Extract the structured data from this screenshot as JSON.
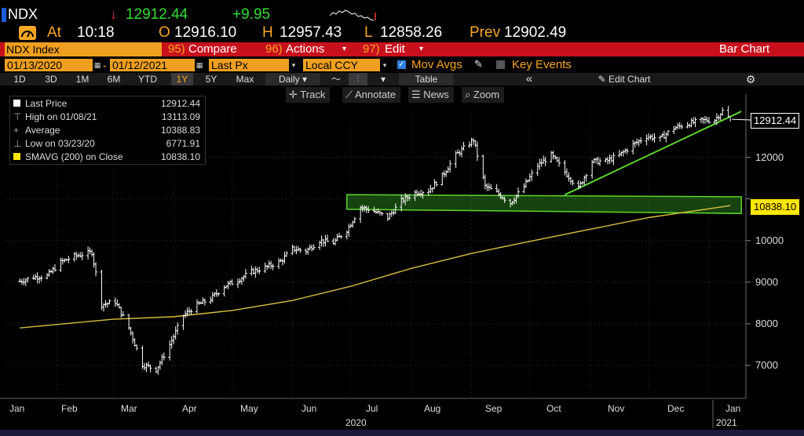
{
  "header": {
    "ticker": "NDX",
    "last_price": "12912.44",
    "arrow": "↓",
    "change": "+9.95",
    "at_label": "At",
    "time": "10:18",
    "open_label": "O",
    "open": "12916.10",
    "high_label": "H",
    "high": "12957.43",
    "low_label": "L",
    "low": "12858.26",
    "prev_label": "Prev",
    "prev": "12902.49"
  },
  "menubar": {
    "security": "NDX Index",
    "compare_num": "95)",
    "compare": "Compare",
    "actions_num": "96)",
    "actions": "Actions",
    "edit_num": "97)",
    "edit": "Edit",
    "title": "Bar Chart"
  },
  "settings": {
    "start_date": "01/13/2020",
    "end_date": "01/12/2021",
    "field": "Last Px",
    "currency": "Local CCY",
    "mov_avgs": "Mov Avgs",
    "key_events": "Key Events"
  },
  "toolbar": {
    "periods": [
      "1D",
      "3D",
      "1M",
      "6M",
      "YTD",
      "1Y",
      "5Y",
      "Max"
    ],
    "selected_period": "1Y",
    "frequency": "Daily",
    "table": "Table",
    "collapse": "«",
    "edit_chart": "Edit Chart"
  },
  "chart_tools": {
    "track": "Track",
    "annotate": "Annotate",
    "news": "News",
    "zoom": "Zoom"
  },
  "legend": [
    {
      "label": "Last Price",
      "value": "12912.44"
    },
    {
      "label": "High on 01/08/21",
      "value": "13113.09"
    },
    {
      "label": "Average",
      "value": "10388.83"
    },
    {
      "label": "Low on 03/23/20",
      "value": "6771.91"
    },
    {
      "label": "SMAVG (200)  on Close",
      "value": "10838.10"
    }
  ],
  "price_labels": {
    "last": "12912.44",
    "smavg": "10838.10"
  },
  "colors": {
    "accent": "#f5a623",
    "menubar": "#c8101d",
    "up": "#33dd33",
    "down": "#e8353c",
    "sma": "#d8c040",
    "trend": "#5dd62c"
  },
  "chart_data": {
    "type": "bar",
    "y_axis": {
      "ticks": [
        7000,
        8000,
        9000,
        10000,
        11000,
        12000
      ],
      "range": [
        6200,
        13400
      ]
    },
    "x_axis": {
      "months": [
        "Jan",
        "Feb",
        "Mar",
        "Apr",
        "May",
        "Jun",
        "Jul",
        "Aug",
        "Sep",
        "Oct",
        "Nov",
        "Dec",
        "Jan"
      ],
      "years": [
        "2020",
        "2021"
      ]
    },
    "close_series": [
      [
        "2020-01-13",
        9020
      ],
      [
        "2020-01-20",
        9120
      ],
      [
        "2020-01-27",
        9150
      ],
      [
        "2020-02-03",
        9480
      ],
      [
        "2020-02-10",
        9620
      ],
      [
        "2020-02-19",
        9720
      ],
      [
        "2020-02-24",
        8460
      ],
      [
        "2020-03-02",
        8530
      ],
      [
        "2020-03-09",
        7900
      ],
      [
        "2020-03-16",
        7020
      ],
      [
        "2020-03-23",
        6900
      ],
      [
        "2020-03-30",
        7500
      ],
      [
        "2020-04-06",
        8200
      ],
      [
        "2020-04-13",
        8450
      ],
      [
        "2020-04-20",
        8600
      ],
      [
        "2020-04-27",
        8900
      ],
      [
        "2020-05-04",
        9050
      ],
      [
        "2020-05-11",
        9250
      ],
      [
        "2020-05-18",
        9350
      ],
      [
        "2020-05-26",
        9500
      ],
      [
        "2020-06-01",
        9800
      ],
      [
        "2020-06-08",
        9750
      ],
      [
        "2020-06-15",
        10000
      ],
      [
        "2020-06-22",
        9950
      ],
      [
        "2020-06-29",
        10250
      ],
      [
        "2020-07-06",
        10800
      ],
      [
        "2020-07-13",
        10700
      ],
      [
        "2020-07-20",
        10550
      ],
      [
        "2020-07-27",
        10950
      ],
      [
        "2020-08-03",
        11150
      ],
      [
        "2020-08-10",
        11200
      ],
      [
        "2020-08-17",
        11550
      ],
      [
        "2020-08-24",
        12050
      ],
      [
        "2020-09-02",
        12420
      ],
      [
        "2020-09-08",
        11300
      ],
      [
        "2020-09-14",
        11150
      ],
      [
        "2020-09-21",
        10900
      ],
      [
        "2020-09-28",
        11300
      ],
      [
        "2020-10-05",
        11800
      ],
      [
        "2020-10-12",
        12050
      ],
      [
        "2020-10-19",
        11650
      ],
      [
        "2020-10-26",
        11250
      ],
      [
        "2020-11-02",
        11900
      ],
      [
        "2020-11-09",
        11900
      ],
      [
        "2020-11-16",
        12050
      ],
      [
        "2020-11-23",
        12300
      ],
      [
        "2020-11-30",
        12500
      ],
      [
        "2020-12-07",
        12450
      ],
      [
        "2020-12-14",
        12700
      ],
      [
        "2020-12-21",
        12800
      ],
      [
        "2020-12-28",
        12880
      ],
      [
        "2021-01-04",
        12900
      ],
      [
        "2021-01-08",
        13113
      ],
      [
        "2021-01-12",
        12912
      ]
    ],
    "sma200": [
      [
        "2020-01-13",
        7900
      ],
      [
        "2020-03-01",
        8110
      ],
      [
        "2020-04-01",
        8170
      ],
      [
        "2020-05-01",
        8320
      ],
      [
        "2020-06-01",
        8560
      ],
      [
        "2020-07-01",
        8900
      ],
      [
        "2020-08-01",
        9330
      ],
      [
        "2020-09-01",
        9690
      ],
      [
        "2020-10-01",
        9980
      ],
      [
        "2020-11-01",
        10270
      ],
      [
        "2020-12-01",
        10550
      ],
      [
        "2021-01-12",
        10838
      ]
    ],
    "trend_line": [
      [
        "2020-10-19",
        11100
      ],
      [
        "2021-01-12",
        12912
      ]
    ],
    "channel": {
      "from": "2020-06-29",
      "to": "2021-01-12",
      "upper": [
        11100,
        11050
      ],
      "lower": [
        10750,
        10650
      ]
    }
  }
}
